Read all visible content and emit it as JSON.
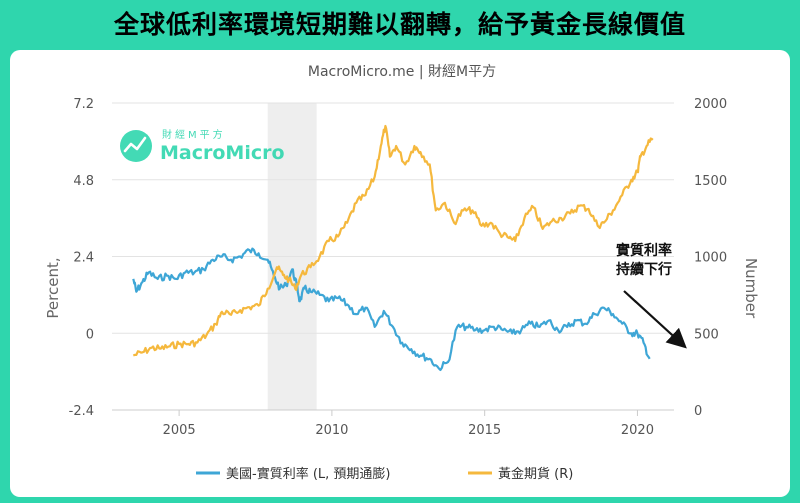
{
  "banner": {
    "title": "全球低利率環境短期難以翻轉，給予黃金長線價值"
  },
  "source": "MacroMicro.me | 財經M平方",
  "logo": {
    "sub": "財經M平方",
    "name": "MacroMicro"
  },
  "annotation": [
    "實質利率",
    "持續下行"
  ],
  "colors": {
    "banner": "#2fd6ad",
    "real_rate": "#3ea6d6",
    "gold": "#f5b83d",
    "recession": "#eeeeee"
  },
  "chart_data": {
    "type": "line",
    "title": "",
    "xlabel": "",
    "ylabel_left": "Percent,",
    "ylabel_right": "Number",
    "x_ticks": [
      "2005",
      "2010",
      "2015",
      "2020"
    ],
    "y_left_ticks": [
      "7.2",
      "4.8",
      "2.4",
      "0",
      "-2.4"
    ],
    "y_right_ticks": [
      "2000",
      "1500",
      "1000",
      "500",
      "0"
    ],
    "xlim": [
      2003.0,
      2021.0
    ],
    "ylim_left": [
      -2.4,
      7.2
    ],
    "ylim_right": [
      0,
      2000
    ],
    "grid": true,
    "legend_position": "bottom",
    "recession_band": [
      2007.9,
      2009.5
    ],
    "series": [
      {
        "name": "美國-實質利率 (L, 預期通膨)",
        "axis": "left",
        "x": [
          2003.5,
          2003.6,
          2003.8,
          2004.0,
          2004.3,
          2004.6,
          2004.9,
          2005.2,
          2005.5,
          2005.8,
          2006.1,
          2006.4,
          2006.7,
          2007.0,
          2007.3,
          2007.6,
          2007.9,
          2008.1,
          2008.3,
          2008.5,
          2008.7,
          2008.85,
          2008.95,
          2009.1,
          2009.3,
          2009.6,
          2009.9,
          2010.2,
          2010.5,
          2010.8,
          2011.1,
          2011.4,
          2011.7,
          2012.0,
          2012.3,
          2012.6,
          2012.9,
          2013.2,
          2013.5,
          2013.8,
          2014.1,
          2014.4,
          2014.7,
          2015.0,
          2015.3,
          2015.6,
          2015.9,
          2016.2,
          2016.5,
          2016.8,
          2017.1,
          2017.4,
          2017.7,
          2018.0,
          2018.3,
          2018.6,
          2018.9,
          2019.2,
          2019.5,
          2019.8,
          2020.0,
          2020.2,
          2020.4
        ],
        "values": [
          1.7,
          1.3,
          1.6,
          1.9,
          1.7,
          1.8,
          1.7,
          1.9,
          1.9,
          2.0,
          2.3,
          2.4,
          2.3,
          2.4,
          2.6,
          2.5,
          2.3,
          1.8,
          1.4,
          1.5,
          2.0,
          1.5,
          1.0,
          1.4,
          1.3,
          1.2,
          1.0,
          1.1,
          0.9,
          0.6,
          0.8,
          0.2,
          0.7,
          0.2,
          -0.3,
          -0.5,
          -0.7,
          -0.8,
          -1.1,
          -0.9,
          0.2,
          0.2,
          0.1,
          0.1,
          0.2,
          0.1,
          0.0,
          0.1,
          0.3,
          0.2,
          0.4,
          0.1,
          0.2,
          0.4,
          0.3,
          0.6,
          0.8,
          0.6,
          0.3,
          0.0,
          0.0,
          -0.3,
          -0.8
        ]
      },
      {
        "name": "黃金期貨 (R)",
        "axis": "right",
        "x": [
          2003.5,
          2003.8,
          2004.1,
          2004.4,
          2004.7,
          2005.0,
          2005.3,
          2005.6,
          2005.9,
          2006.2,
          2006.4,
          2006.7,
          2007.0,
          2007.3,
          2007.6,
          2007.9,
          2008.2,
          2008.4,
          2008.6,
          2008.8,
          2009.0,
          2009.3,
          2009.6,
          2009.9,
          2010.2,
          2010.5,
          2010.8,
          2011.1,
          2011.4,
          2011.6,
          2011.75,
          2011.9,
          2012.1,
          2012.4,
          2012.7,
          2012.9,
          2013.2,
          2013.4,
          2013.7,
          2014.0,
          2014.3,
          2014.6,
          2014.9,
          2015.2,
          2015.5,
          2015.8,
          2016.0,
          2016.3,
          2016.6,
          2016.9,
          2017.2,
          2017.5,
          2017.8,
          2018.1,
          2018.4,
          2018.7,
          2018.9,
          2019.2,
          2019.5,
          2019.8,
          2020.0,
          2020.1,
          2020.3,
          2020.5
        ],
        "values": [
          355,
          375,
          405,
          400,
          415,
          430,
          430,
          440,
          490,
          560,
          640,
          620,
          650,
          670,
          680,
          790,
          930,
          880,
          850,
          790,
          880,
          930,
          1000,
          1100,
          1130,
          1220,
          1350,
          1400,
          1520,
          1720,
          1850,
          1650,
          1720,
          1600,
          1720,
          1680,
          1600,
          1300,
          1350,
          1220,
          1300,
          1300,
          1200,
          1220,
          1150,
          1120,
          1100,
          1250,
          1320,
          1180,
          1230,
          1250,
          1280,
          1330,
          1310,
          1200,
          1220,
          1300,
          1400,
          1500,
          1550,
          1650,
          1720,
          1770
        ]
      }
    ]
  }
}
